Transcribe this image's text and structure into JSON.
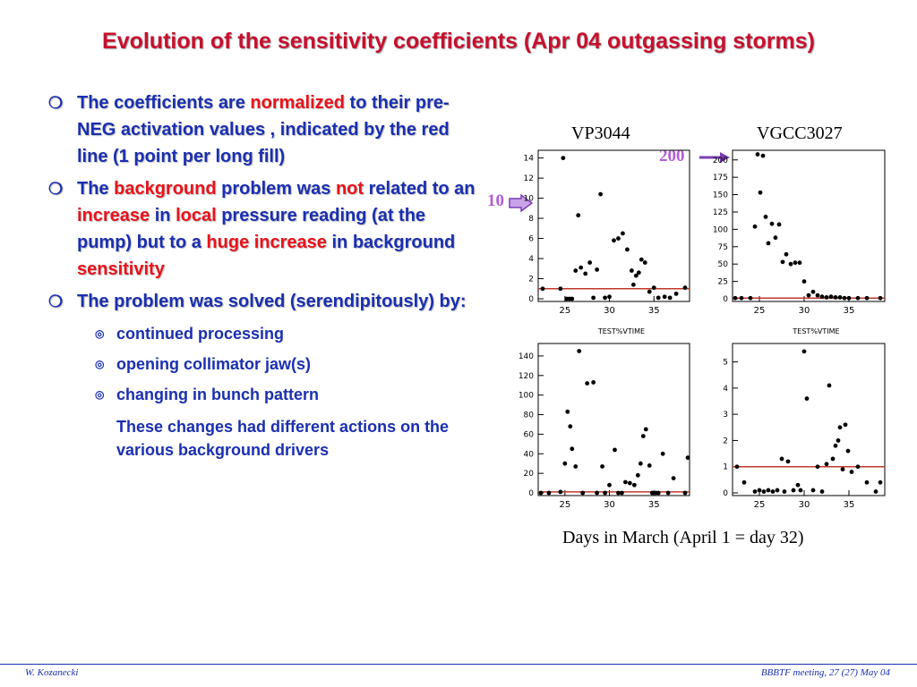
{
  "title": "Evolution of the sensitivity coefficients (Apr 04 outgassing storms)",
  "bullets": [
    {
      "segments": [
        {
          "text": "The coefficients are ",
          "red": false
        },
        {
          "text": "normalized",
          "red": true
        },
        {
          "text": " to their pre-NEG activation values , indicated by the red line (1 point per long fill)",
          "red": false
        }
      ]
    },
    {
      "segments": [
        {
          "text": "The ",
          "red": false
        },
        {
          "text": "background",
          "red": true
        },
        {
          "text": " problem was ",
          "red": false
        },
        {
          "text": "not",
          "red": true
        },
        {
          "text": " related to an ",
          "red": false
        },
        {
          "text": "increase",
          "red": true
        },
        {
          "text": " in ",
          "red": false
        },
        {
          "text": "local",
          "red": true
        },
        {
          "text": " pressure reading (at the pump) but to a ",
          "red": false
        },
        {
          "text": "huge increase",
          "red": true
        },
        {
          "text": " in background ",
          "red": false
        },
        {
          "text": "sensitivity",
          "red": true
        }
      ]
    },
    {
      "segments": [
        {
          "text": "The problem was solved (serendipitously) by:",
          "red": false
        }
      ]
    }
  ],
  "sub_items": [
    "continued processing",
    "opening collimator jaw(s)",
    "changing in bunch pattern"
  ],
  "note": "These changes had different actions on the various background drivers",
  "labels": {
    "vp": "VP3044",
    "vgcc": "VGCC3027",
    "days": "Days in March (April 1 = day 32)",
    "arrow_10": "10",
    "arrow_200": "200"
  },
  "footer": {
    "left": "W. Kozanecki",
    "right": "BBBTF meeting, 27 (27) May 04"
  },
  "colors": {
    "title": "#c8102e",
    "text": "#1a2fb0",
    "highlight": "#e8131b",
    "arrow": "#b35cd6",
    "refline": "#c0392b"
  },
  "chart_data": [
    {
      "type": "scatter",
      "xlabel": "TEST%VTIME",
      "xticks": [
        25,
        30,
        35
      ],
      "xlim": [
        22,
        39
      ],
      "yticks": [
        0,
        2,
        4,
        6,
        8,
        10,
        12,
        14
      ],
      "ylim": [
        0,
        14.5
      ],
      "refline": 1,
      "points": [
        [
          22.5,
          1
        ],
        [
          24.5,
          1
        ],
        [
          24.8,
          14
        ],
        [
          25.2,
          0
        ],
        [
          25.5,
          0
        ],
        [
          25.8,
          0
        ],
        [
          26.2,
          2.8
        ],
        [
          26.5,
          8.3
        ],
        [
          26.8,
          3.1
        ],
        [
          27.3,
          2.5
        ],
        [
          27.8,
          3.6
        ],
        [
          28.2,
          0.1
        ],
        [
          28.6,
          2.9
        ],
        [
          29.0,
          10.4
        ],
        [
          29.5,
          0.1
        ],
        [
          30.0,
          0.2
        ],
        [
          30.5,
          5.8
        ],
        [
          31.0,
          6.0
        ],
        [
          31.5,
          6.5
        ],
        [
          32.0,
          4.9
        ],
        [
          32.5,
          2.8
        ],
        [
          32.7,
          1.4
        ],
        [
          33.0,
          2.3
        ],
        [
          33.3,
          2.6
        ],
        [
          33.6,
          3.9
        ],
        [
          34.0,
          3.6
        ],
        [
          34.5,
          0.7
        ],
        [
          35.0,
          1.1
        ],
        [
          35.5,
          0.1
        ],
        [
          36.2,
          0.2
        ],
        [
          36.8,
          0.1
        ],
        [
          37.5,
          0.5
        ],
        [
          38.5,
          1.1
        ]
      ]
    },
    {
      "type": "scatter",
      "xlabel": "TEST%VTIME",
      "xticks": [
        25,
        30,
        35
      ],
      "xlim": [
        22,
        39
      ],
      "yticks": [
        0,
        25,
        50,
        75,
        100,
        125,
        150,
        175,
        200
      ],
      "ylim": [
        0,
        210
      ],
      "refline": 1,
      "points": [
        [
          22.3,
          1
        ],
        [
          23.0,
          1
        ],
        [
          24.0,
          1
        ],
        [
          24.5,
          104
        ],
        [
          24.8,
          208
        ],
        [
          25.1,
          153
        ],
        [
          25.4,
          206
        ],
        [
          25.7,
          118
        ],
        [
          26.0,
          80
        ],
        [
          26.4,
          108
        ],
        [
          26.8,
          88
        ],
        [
          27.2,
          107
        ],
        [
          27.6,
          53
        ],
        [
          28.0,
          64
        ],
        [
          28.5,
          50
        ],
        [
          29.0,
          52
        ],
        [
          29.5,
          52
        ],
        [
          30.0,
          25
        ],
        [
          30.5,
          5
        ],
        [
          31.0,
          10
        ],
        [
          31.5,
          5
        ],
        [
          32.0,
          3
        ],
        [
          32.5,
          2
        ],
        [
          33.0,
          3
        ],
        [
          33.5,
          2
        ],
        [
          34.0,
          2
        ],
        [
          34.5,
          1
        ],
        [
          35.0,
          1
        ],
        [
          36.0,
          1
        ],
        [
          37.0,
          1
        ],
        [
          38.5,
          1
        ]
      ]
    },
    {
      "type": "scatter",
      "xticks": [
        25,
        30,
        35
      ],
      "xlim": [
        22,
        39
      ],
      "yticks": [
        0,
        20,
        40,
        60,
        80,
        100,
        120,
        140
      ],
      "ylim": [
        0,
        150
      ],
      "refline": 1,
      "points": [
        [
          22.3,
          0
        ],
        [
          23.2,
          0
        ],
        [
          24.5,
          1
        ],
        [
          25.0,
          30
        ],
        [
          25.3,
          83
        ],
        [
          25.6,
          68
        ],
        [
          25.8,
          45
        ],
        [
          26.2,
          27
        ],
        [
          26.6,
          145
        ],
        [
          27.0,
          0
        ],
        [
          27.5,
          112
        ],
        [
          28.2,
          113
        ],
        [
          28.6,
          0
        ],
        [
          29.2,
          27
        ],
        [
          29.5,
          0
        ],
        [
          30.0,
          8
        ],
        [
          30.6,
          44
        ],
        [
          31.0,
          0
        ],
        [
          31.4,
          0
        ],
        [
          31.8,
          11
        ],
        [
          32.3,
          10
        ],
        [
          32.8,
          8
        ],
        [
          33.2,
          18
        ],
        [
          33.5,
          30
        ],
        [
          33.8,
          58
        ],
        [
          34.1,
          65
        ],
        [
          34.5,
          28
        ],
        [
          34.8,
          0
        ],
        [
          35.2,
          0
        ],
        [
          35.5,
          0
        ],
        [
          36.0,
          40
        ],
        [
          36.6,
          0
        ],
        [
          37.2,
          15
        ],
        [
          38.5,
          0
        ],
        [
          38.8,
          36
        ]
      ]
    },
    {
      "type": "scatter",
      "xticks": [
        25,
        30,
        35
      ],
      "xlim": [
        22,
        39
      ],
      "yticks": [
        0,
        1,
        2,
        3,
        4,
        5
      ],
      "ylim": [
        0,
        5.6
      ],
      "refline": 1,
      "points": [
        [
          22.5,
          1
        ],
        [
          23.3,
          0.4
        ],
        [
          24.5,
          0.05
        ],
        [
          25.0,
          0.1
        ],
        [
          25.5,
          0.05
        ],
        [
          26.0,
          0.1
        ],
        [
          26.5,
          0.05
        ],
        [
          27.0,
          0.1
        ],
        [
          27.5,
          1.3
        ],
        [
          27.8,
          0.05
        ],
        [
          28.2,
          1.2
        ],
        [
          28.8,
          0.1
        ],
        [
          29.3,
          0.3
        ],
        [
          29.6,
          0.1
        ],
        [
          30.0,
          5.4
        ],
        [
          30.3,
          3.6
        ],
        [
          31.0,
          0.1
        ],
        [
          31.5,
          1.0
        ],
        [
          32.0,
          0.05
        ],
        [
          32.5,
          1.1
        ],
        [
          32.8,
          4.1
        ],
        [
          33.2,
          1.3
        ],
        [
          33.5,
          1.8
        ],
        [
          33.8,
          2.0
        ],
        [
          34.0,
          2.5
        ],
        [
          34.3,
          0.9
        ],
        [
          34.6,
          2.6
        ],
        [
          34.9,
          1.6
        ],
        [
          35.3,
          0.8
        ],
        [
          36.0,
          1.0
        ],
        [
          37.0,
          0.4
        ],
        [
          38.0,
          0.05
        ],
        [
          38.5,
          0.4
        ]
      ]
    }
  ]
}
